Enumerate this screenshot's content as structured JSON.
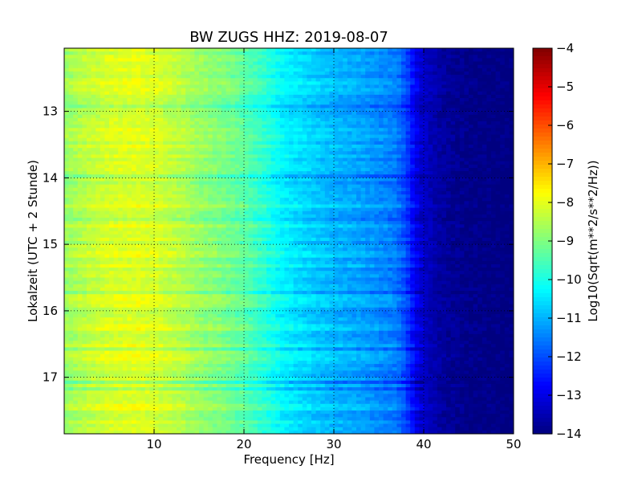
{
  "chart_data": {
    "type": "heatmap",
    "title": "BW ZUGS HHZ: 2019-08-07",
    "xlabel": "Frequency [Hz]",
    "ylabel": "Lokalzeit (UTC + 2 Stunde)",
    "xlim": [
      0,
      50
    ],
    "ylim": [
      17.85,
      12.05
    ],
    "x_ticks": [
      10,
      20,
      30,
      40,
      50
    ],
    "y_ticks": [
      13,
      14,
      15,
      16,
      17
    ],
    "grid": true,
    "colorbar": {
      "label": "Log10(Sqrt(m**2/s**2/Hz))",
      "range": [
        -14,
        -4
      ],
      "ticks": [
        -4,
        -5,
        -6,
        -7,
        -8,
        -9,
        -10,
        -11,
        -12,
        -13,
        -14
      ],
      "colormap": "jet"
    },
    "profile": {
      "frequency_hz": [
        0,
        2,
        5,
        8,
        10,
        13,
        15,
        18,
        20,
        22,
        24,
        26,
        28,
        30,
        33,
        35,
        37,
        38,
        39,
        40,
        42,
        45,
        50
      ],
      "log10_amplitude": [
        -8.7,
        -8.4,
        -8.1,
        -8.0,
        -8.1,
        -8.4,
        -8.7,
        -9.0,
        -9.3,
        -9.7,
        -10.2,
        -10.5,
        -10.7,
        -10.9,
        -11.1,
        -11.3,
        -11.5,
        -12.0,
        -12.8,
        -13.3,
        -13.7,
        -13.9,
        -14.0
      ]
    }
  }
}
